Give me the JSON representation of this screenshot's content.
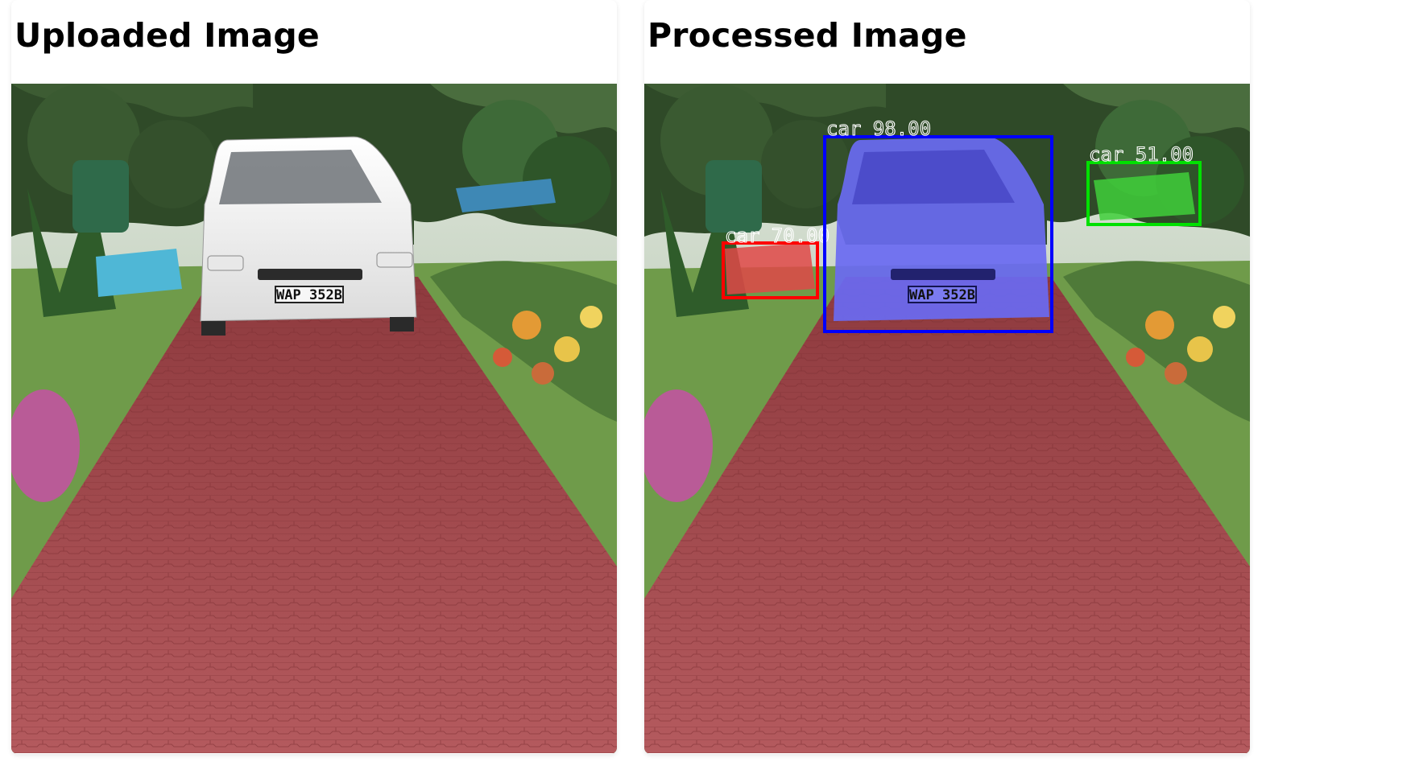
{
  "uploaded": {
    "title": "Uploaded Image",
    "plate": "WAP 352B"
  },
  "processed": {
    "title": "Processed Image",
    "plate": "WAP 352B",
    "detections": [
      {
        "label": "car 98.00",
        "class": "car",
        "confidence": 98.0,
        "color": "#0000ff"
      },
      {
        "label": "car 70.00",
        "class": "car",
        "confidence": 70.0,
        "color": "#ff0000"
      },
      {
        "label": "car 51.00",
        "class": "car",
        "confidence": 51.0,
        "color": "#00e000"
      }
    ]
  },
  "colors": {
    "driveway": "#a8484c",
    "lawn": "#6f9b4a",
    "foliage": "#2f4a28",
    "van": "#f2f2f0"
  }
}
